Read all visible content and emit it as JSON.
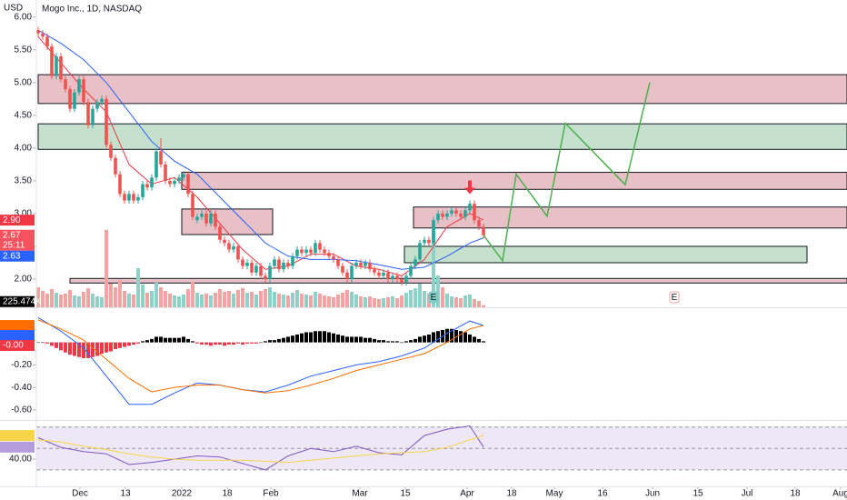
{
  "chart_data": {
    "type": "candlestick",
    "title": "Mogo Inc., 1D, NASDAQ",
    "currency": "USD",
    "up_color": "#26a69a",
    "down_color": "#ef5350",
    "candles": [
      [
        5.8,
        5.85,
        5.7,
        5.75
      ],
      [
        5.75,
        5.8,
        5.65,
        5.7
      ],
      [
        5.7,
        5.75,
        5.5,
        5.55
      ],
      [
        5.55,
        5.6,
        5.05,
        5.1
      ],
      [
        5.1,
        5.45,
        5.05,
        5.4
      ],
      [
        5.4,
        5.45,
        5.0,
        5.05
      ],
      [
        5.05,
        5.1,
        4.85,
        4.9
      ],
      [
        4.9,
        4.95,
        4.55,
        4.6
      ],
      [
        4.6,
        4.9,
        4.55,
        4.85
      ],
      [
        4.85,
        5.1,
        4.8,
        5.05
      ],
      [
        5.05,
        5.1,
        4.65,
        4.7
      ],
      [
        4.7,
        4.75,
        4.3,
        4.35
      ],
      [
        4.35,
        4.65,
        4.3,
        4.6
      ],
      [
        4.6,
        4.75,
        4.55,
        4.7
      ],
      [
        4.7,
        4.8,
        4.65,
        4.75
      ],
      [
        4.75,
        4.8,
        4.0,
        4.05
      ],
      [
        4.05,
        4.1,
        3.8,
        3.85
      ],
      [
        3.85,
        3.9,
        3.55,
        3.6
      ],
      [
        3.6,
        3.65,
        3.25,
        3.3
      ],
      [
        3.3,
        3.35,
        3.15,
        3.2
      ],
      [
        3.2,
        3.35,
        3.15,
        3.3
      ],
      [
        3.3,
        3.35,
        3.15,
        3.2
      ],
      [
        3.2,
        3.3,
        3.15,
        3.25
      ],
      [
        3.25,
        3.5,
        3.2,
        3.45
      ],
      [
        3.45,
        3.5,
        3.35,
        3.4
      ],
      [
        3.4,
        3.6,
        3.35,
        3.55
      ],
      [
        3.55,
        4.0,
        3.5,
        3.95
      ],
      [
        3.95,
        4.15,
        3.7,
        3.75
      ],
      [
        3.75,
        3.8,
        3.45,
        3.5
      ],
      [
        3.5,
        3.55,
        3.4,
        3.45
      ],
      [
        3.45,
        3.55,
        3.4,
        3.5
      ],
      [
        3.5,
        3.6,
        3.45,
        3.55
      ],
      [
        3.55,
        3.65,
        3.5,
        3.6
      ],
      [
        3.6,
        3.65,
        3.25,
        3.3
      ],
      [
        3.3,
        3.35,
        2.9,
        2.95
      ],
      [
        2.9,
        3.0,
        2.85,
        2.95
      ],
      [
        2.95,
        3.05,
        2.9,
        3.0
      ],
      [
        3.0,
        3.05,
        2.8,
        2.85
      ],
      [
        2.85,
        3.05,
        2.8,
        3.0
      ],
      [
        3.0,
        3.05,
        2.75,
        2.8
      ],
      [
        2.8,
        2.85,
        2.55,
        2.6
      ],
      [
        2.6,
        2.65,
        2.5,
        2.55
      ],
      [
        2.55,
        2.6,
        2.4,
        2.45
      ],
      [
        2.45,
        2.55,
        2.4,
        2.5
      ],
      [
        2.5,
        2.55,
        2.25,
        2.3
      ],
      [
        2.3,
        2.35,
        2.15,
        2.2
      ],
      [
        2.2,
        2.3,
        2.15,
        2.25
      ],
      [
        2.25,
        2.3,
        2.05,
        2.1
      ],
      [
        2.1,
        2.25,
        2.05,
        2.2
      ],
      [
        2.2,
        2.25,
        2.0,
        2.05
      ],
      [
        2.05,
        2.1,
        1.95,
        2.0
      ],
      [
        2.0,
        2.25,
        1.95,
        2.2
      ],
      [
        2.2,
        2.35,
        2.15,
        2.3
      ],
      [
        2.3,
        2.35,
        2.1,
        2.15
      ],
      [
        2.15,
        2.3,
        2.1,
        2.25
      ],
      [
        2.25,
        2.3,
        2.15,
        2.2
      ],
      [
        2.2,
        2.4,
        2.15,
        2.35
      ],
      [
        2.35,
        2.5,
        2.3,
        2.45
      ],
      [
        2.45,
        2.5,
        2.35,
        2.4
      ],
      [
        2.4,
        2.5,
        2.35,
        2.45
      ],
      [
        2.45,
        2.5,
        2.35,
        2.4
      ],
      [
        2.4,
        2.6,
        2.35,
        2.55
      ],
      [
        2.55,
        2.6,
        2.4,
        2.45
      ],
      [
        2.45,
        2.5,
        2.35,
        2.4
      ],
      [
        2.4,
        2.45,
        2.3,
        2.35
      ],
      [
        2.35,
        2.4,
        2.25,
        2.3
      ],
      [
        2.3,
        2.35,
        2.15,
        2.2
      ],
      [
        2.2,
        2.25,
        2.05,
        2.1
      ],
      [
        2.1,
        2.15,
        1.95,
        2.0
      ],
      [
        2.0,
        2.25,
        1.95,
        2.2
      ],
      [
        2.2,
        2.3,
        2.15,
        2.25
      ],
      [
        2.25,
        2.3,
        2.15,
        2.2
      ],
      [
        2.2,
        2.3,
        2.15,
        2.25
      ],
      [
        2.25,
        2.3,
        2.1,
        2.15
      ],
      [
        2.15,
        2.2,
        2.05,
        2.1
      ],
      [
        2.1,
        2.15,
        2.0,
        2.05
      ],
      [
        2.05,
        2.15,
        2.0,
        2.1
      ],
      [
        2.1,
        2.15,
        1.95,
        2.0
      ],
      [
        2.0,
        2.1,
        1.95,
        2.05
      ],
      [
        2.05,
        2.1,
        1.95,
        2.0
      ],
      [
        2.0,
        2.05,
        1.9,
        1.95
      ],
      [
        1.95,
        2.1,
        1.9,
        2.05
      ],
      [
        2.05,
        2.25,
        2.0,
        2.2
      ],
      [
        2.2,
        2.35,
        2.15,
        2.3
      ],
      [
        2.3,
        2.6,
        2.25,
        2.55
      ],
      [
        2.55,
        2.65,
        2.5,
        2.6
      ],
      [
        2.6,
        2.65,
        2.5,
        2.55
      ],
      [
        2.55,
        2.95,
        2.5,
        2.9
      ],
      [
        2.9,
        3.05,
        2.85,
        3.0
      ],
      [
        3.0,
        3.05,
        2.9,
        2.95
      ],
      [
        2.95,
        3.05,
        2.9,
        3.0
      ],
      [
        3.0,
        3.1,
        2.95,
        3.05
      ],
      [
        3.05,
        3.1,
        2.95,
        3.0
      ],
      [
        3.0,
        3.05,
        2.9,
        2.95
      ],
      [
        2.95,
        3.1,
        2.9,
        3.05
      ],
      [
        3.05,
        3.2,
        3.0,
        3.15
      ],
      [
        3.15,
        3.2,
        2.85,
        2.9
      ],
      [
        2.9,
        2.95,
        2.75,
        2.8
      ],
      [
        2.8,
        2.85,
        2.62,
        2.67
      ]
    ],
    "xlim": [
      -0.4,
      178
    ],
    "xticks": [
      {
        "value": 9.2,
        "label": "Dec"
      },
      {
        "value": 19.2,
        "label": "13"
      },
      {
        "value": 31.6,
        "label": "2022"
      },
      {
        "value": 41.6,
        "label": "18"
      },
      {
        "value": 51.2,
        "label": "Feb"
      },
      {
        "value": 70.8,
        "label": "Mar"
      },
      {
        "value": 80.8,
        "label": "15"
      },
      {
        "value": 94.4,
        "label": "Apr"
      },
      {
        "value": 104.2,
        "label": "18"
      },
      {
        "value": 113.6,
        "label": "May"
      },
      {
        "value": 124.2,
        "label": "16"
      },
      {
        "value": 135.2,
        "label": "Jun"
      },
      {
        "value": 145.2,
        "label": "15"
      },
      {
        "value": 156,
        "label": "Jul"
      },
      {
        "value": 166.6,
        "label": "18"
      },
      {
        "value": 176.6,
        "label": "Aug"
      }
    ],
    "ylim": [
      1.57,
      6.26
    ],
    "yticks": [
      {
        "value": 6,
        "label": "6.00"
      },
      {
        "value": 5.5,
        "label": "5.50"
      },
      {
        "value": 5,
        "label": "5.00"
      },
      {
        "value": 4.5,
        "label": "4.50"
      },
      {
        "value": 4,
        "label": "4.00"
      },
      {
        "value": 3.5,
        "label": "3.50"
      },
      {
        "value": 3,
        "label": "3.00"
      },
      {
        "value": 2.5,
        "label": "2.50"
      },
      {
        "value": 2,
        "label": "2.00"
      }
    ],
    "price_tags": [
      {
        "value": 2.9,
        "label": "2.90",
        "color": "#f23645"
      },
      {
        "value": 2.67,
        "label": "2.67",
        "countdown": "25:11",
        "color": "#f7525f"
      },
      {
        "value": 2.63,
        "label": "2.63",
        "color": "#2962ff"
      }
    ],
    "moving_averages": [
      {
        "color": "#f23645",
        "x": [
          0,
          5,
          10,
          15,
          20,
          25,
          30,
          35,
          40,
          45,
          50,
          55,
          60,
          65,
          70,
          75,
          80,
          85,
          90,
          95,
          98
        ],
        "values": [
          5.7,
          5.3,
          4.9,
          4.55,
          3.75,
          3.45,
          3.55,
          3.25,
          2.85,
          2.45,
          2.15,
          2.2,
          2.38,
          2.38,
          2.2,
          2.15,
          2.05,
          2.3,
          2.8,
          3.0,
          2.9
        ]
      },
      {
        "color": "#2962ff",
        "x": [
          0,
          5,
          10,
          15,
          20,
          25,
          30,
          35,
          40,
          45,
          50,
          55,
          60,
          65,
          70,
          75,
          80,
          85,
          90,
          95,
          98
        ],
        "values": [
          5.8,
          5.6,
          5.35,
          5.0,
          4.55,
          4.1,
          3.8,
          3.6,
          3.25,
          2.9,
          2.55,
          2.35,
          2.3,
          2.3,
          2.28,
          2.22,
          2.15,
          2.18,
          2.35,
          2.55,
          2.63
        ]
      }
    ],
    "volume": {
      "ylim": [
        0,
        12000
      ],
      "up_color": "#8fd0c8",
      "down_color": "#f4a3a3",
      "values": [
        2200,
        1800,
        1500,
        2000,
        1600,
        1400,
        1500,
        1900,
        1300,
        1200,
        1700,
        2100,
        1500,
        1200,
        1100,
        8500,
        2600,
        2200,
        3000,
        1800,
        1500,
        1400,
        4300,
        2500,
        1600,
        1800,
        2700,
        2200,
        1800,
        1500,
        1300,
        1200,
        1400,
        2000,
        2800,
        1600,
        1400,
        1500,
        1300,
        1600,
        2000,
        1700,
        1800,
        1500,
        1900,
        2100,
        1600,
        1700,
        1400,
        1800,
        2000,
        2200,
        1700,
        1500,
        1400,
        1300,
        1600,
        1900,
        1500,
        1400,
        1300,
        1700,
        1500,
        1300,
        1200,
        1100,
        1400,
        1600,
        1900,
        1700,
        1400,
        1200,
        1100,
        1200,
        1000,
        900,
        1000,
        1100,
        1200,
        1000,
        1300,
        1600,
        1900,
        2100,
        2600,
        1800,
        1500,
        8300,
        3500,
        2200,
        1500,
        1200,
        1100,
        1000,
        1300,
        1400,
        900,
        700,
        225.474
      ],
      "tag": {
        "value": 225.474,
        "label": "225.474K"
      }
    },
    "zones": [
      {
        "x": [
          0,
          178
        ],
        "y": [
          4.68,
          5.12
        ],
        "color": "#e8c1c7"
      },
      {
        "x": [
          0,
          178
        ],
        "y": [
          3.98,
          4.37
        ],
        "color": "#c5e0cc"
      },
      {
        "x": [
          31.6,
          178
        ],
        "y": [
          3.37,
          3.63
        ],
        "color": "#e8c1c7"
      },
      {
        "x": [
          31.6,
          51.6
        ],
        "y": [
          2.68,
          3.07
        ],
        "color": "#e8c1c7"
      },
      {
        "x": [
          82.6,
          178
        ],
        "y": [
          2.78,
          3.1
        ],
        "color": "#e8c1c7"
      },
      {
        "x": [
          80.6,
          169.2
        ],
        "y": [
          2.25,
          2.5
        ],
        "color": "#c5e0cc"
      },
      {
        "x": [
          7,
          178
        ],
        "y": [
          1.94,
          2.01
        ],
        "color": "#e8c1c7"
      }
    ],
    "projection": {
      "color": "#4caf50",
      "x": [
        98,
        102.2,
        105.2,
        112,
        116,
        129.2,
        134.6
      ],
      "values": [
        2.67,
        2.28,
        3.6,
        2.96,
        4.38,
        3.44,
        5.0
      ]
    },
    "earnings": {
      "x": [
        87,
        140
      ],
      "labels": [
        "E",
        "E"
      ]
    },
    "macd": {
      "ylim": [
        -0.69,
        0.304
      ],
      "yticks": [
        {
          "value": -0.2,
          "label": "-0.20"
        },
        {
          "value": -0.4,
          "label": "-0.40"
        },
        {
          "value": -0.6,
          "label": "-0.60"
        }
      ],
      "positive_color": "#000000",
      "negative_color": "#f23645",
      "histogram": [
        0.0,
        0.0,
        -0.01,
        -0.03,
        -0.05,
        -0.07,
        -0.09,
        -0.11,
        -0.12,
        -0.13,
        -0.14,
        -0.14,
        -0.13,
        -0.12,
        -0.1,
        -0.09,
        -0.08,
        -0.06,
        -0.05,
        -0.04,
        -0.03,
        -0.02,
        -0.01,
        0.01,
        0.02,
        0.03,
        0.05,
        0.05,
        0.04,
        0.04,
        0.04,
        0.04,
        0.05,
        0.03,
        0.01,
        -0.01,
        -0.02,
        -0.02,
        -0.03,
        -0.02,
        -0.02,
        -0.03,
        -0.02,
        -0.02,
        -0.01,
        -0.02,
        -0.01,
        -0.01,
        -0.01,
        0.0,
        0.01,
        0.02,
        0.02,
        0.03,
        0.04,
        0.05,
        0.06,
        0.07,
        0.08,
        0.09,
        0.09,
        0.1,
        0.1,
        0.1,
        0.09,
        0.08,
        0.07,
        0.06,
        0.05,
        0.05,
        0.05,
        0.05,
        0.04,
        0.04,
        0.03,
        0.02,
        0.02,
        0.01,
        0.01,
        0.01,
        0.0,
        0.01,
        0.02,
        0.03,
        0.05,
        0.06,
        0.07,
        0.09,
        0.1,
        0.11,
        0.12,
        0.12,
        0.11,
        0.1,
        0.09,
        0.07,
        0.05,
        0.03,
        0.01
      ],
      "lines": [
        {
          "color": "#2962ff",
          "x": [
            0,
            5,
            10,
            15,
            20,
            25,
            30,
            35,
            40,
            45,
            50,
            55,
            60,
            65,
            70,
            75,
            80,
            85,
            90,
            95,
            98
          ],
          "values": [
            0.22,
            0.1,
            -0.05,
            -0.3,
            -0.55,
            -0.55,
            -0.45,
            -0.36,
            -0.38,
            -0.42,
            -0.44,
            -0.38,
            -0.3,
            -0.25,
            -0.2,
            -0.17,
            -0.12,
            -0.05,
            0.08,
            0.19,
            0.15
          ]
        },
        {
          "color": "#ff6d00",
          "x": [
            0,
            5,
            10,
            15,
            20,
            25,
            30,
            35,
            40,
            45,
            50,
            55,
            60,
            65,
            70,
            75,
            80,
            85,
            90,
            95,
            98
          ],
          "values": [
            0.2,
            0.12,
            0.02,
            -0.15,
            -0.32,
            -0.44,
            -0.4,
            -0.38,
            -0.38,
            -0.42,
            -0.45,
            -0.43,
            -0.38,
            -0.32,
            -0.25,
            -0.2,
            -0.15,
            -0.1,
            0.0,
            0.12,
            0.15
          ]
        }
      ],
      "tags": [
        {
          "value": 0.15,
          "color": "#ff6d00"
        },
        {
          "value": 0.15,
          "color": "#2962ff"
        },
        {
          "value": 0,
          "label": "-0.00",
          "color": "#f23645"
        }
      ]
    },
    "rsi": {
      "ylim": [
        14.6,
        75.7
      ],
      "yticks": [
        {
          "value": 40,
          "label": "40.00"
        }
      ],
      "bands": [
        30,
        70
      ],
      "midline": 50,
      "band_color": "#ede7f6",
      "lines": [
        {
          "color": "#7e57c2",
          "x": [
            0,
            5,
            10,
            15,
            20,
            25,
            30,
            35,
            40,
            45,
            50,
            55,
            60,
            65,
            70,
            75,
            80,
            85,
            90,
            95,
            98
          ],
          "values": [
            60,
            51,
            47,
            45,
            35,
            37,
            40,
            43,
            42,
            36,
            30,
            43,
            50,
            47,
            52,
            46,
            44,
            62,
            68,
            71,
            51.26
          ]
        },
        {
          "color": "#f7d44a",
          "x": [
            0,
            5,
            10,
            15,
            20,
            25,
            30,
            35,
            40,
            45,
            50,
            55,
            60,
            65,
            70,
            75,
            80,
            85,
            90,
            95,
            98
          ],
          "values": [
            58,
            56,
            52,
            49,
            45,
            42,
            40,
            39,
            39,
            39,
            38,
            37,
            39,
            41,
            43,
            45,
            46,
            47,
            51,
            58,
            62.07
          ]
        }
      ],
      "tags": [
        {
          "value": 62.07,
          "color": "#f7d44a"
        },
        {
          "value": 51.26,
          "color": "#b39ddb"
        }
      ]
    }
  }
}
